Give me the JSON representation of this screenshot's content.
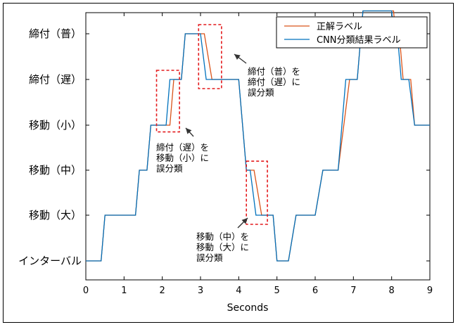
{
  "chart_data": {
    "type": "line",
    "xlabel": "Seconds",
    "xlim": [
      0,
      9
    ],
    "xticks": [
      "0",
      "1",
      "2",
      "3",
      "4",
      "5",
      "6",
      "7",
      "8",
      "9"
    ],
    "yticks": [
      "インターバル",
      "移動（大）",
      "移動（中）",
      "移動（小）",
      "締付（遅）",
      "締付（普）"
    ],
    "ylim": [
      0,
      5
    ],
    "legend_position": "top-right",
    "grid": false,
    "series": [
      {
        "name": "正解ラベル",
        "color": "#d95319",
        "points": [
          [
            0,
            0
          ],
          [
            0.4,
            0
          ],
          [
            0.5,
            1
          ],
          [
            1.3,
            1
          ],
          [
            1.4,
            2
          ],
          [
            1.6,
            2
          ],
          [
            1.7,
            3
          ],
          [
            1.9,
            3
          ],
          [
            2.0,
            3
          ],
          [
            2.2,
            3
          ],
          [
            2.3,
            4
          ],
          [
            2.5,
            4
          ],
          [
            2.6,
            5
          ],
          [
            3.0,
            5
          ],
          [
            3.1,
            5
          ],
          [
            3.3,
            4
          ],
          [
            4.0,
            4
          ],
          [
            4.2,
            2
          ],
          [
            4.4,
            2
          ],
          [
            4.6,
            1
          ],
          [
            4.9,
            1
          ],
          [
            5.0,
            0
          ],
          [
            5.3,
            0
          ],
          [
            5.5,
            1
          ],
          [
            6.0,
            1
          ],
          [
            6.2,
            2
          ],
          [
            6.6,
            2
          ],
          [
            6.9,
            4
          ],
          [
            7.1,
            4
          ],
          [
            7.25,
            5.5
          ],
          [
            8.05,
            5.5
          ],
          [
            8.1,
            5
          ],
          [
            8.2,
            5
          ],
          [
            8.3,
            4
          ],
          [
            8.5,
            4
          ],
          [
            8.6,
            3
          ],
          [
            9.0,
            3
          ]
        ]
      },
      {
        "name": "CNN分類結果ラベル",
        "color": "#0072bd",
        "points": [
          [
            0,
            0
          ],
          [
            0.4,
            0
          ],
          [
            0.5,
            1
          ],
          [
            1.3,
            1
          ],
          [
            1.4,
            2
          ],
          [
            1.6,
            2
          ],
          [
            1.7,
            3
          ],
          [
            1.95,
            3
          ],
          [
            2.0,
            3
          ],
          [
            2.1,
            3
          ],
          [
            2.2,
            4
          ],
          [
            2.5,
            4
          ],
          [
            2.6,
            5
          ],
          [
            2.9,
            5
          ],
          [
            3.0,
            5
          ],
          [
            3.15,
            4
          ],
          [
            4.0,
            4
          ],
          [
            4.2,
            2
          ],
          [
            4.3,
            2
          ],
          [
            4.45,
            1
          ],
          [
            4.9,
            1
          ],
          [
            5.0,
            0
          ],
          [
            5.3,
            0
          ],
          [
            5.5,
            1
          ],
          [
            6.0,
            1
          ],
          [
            6.2,
            2
          ],
          [
            6.6,
            2
          ],
          [
            6.8,
            4
          ],
          [
            7.1,
            4
          ],
          [
            7.25,
            5.5
          ],
          [
            8.0,
            5.5
          ],
          [
            8.05,
            5
          ],
          [
            8.15,
            5
          ],
          [
            8.25,
            4
          ],
          [
            8.45,
            4
          ],
          [
            8.6,
            3
          ],
          [
            9.0,
            3
          ]
        ]
      }
    ],
    "annotations": [
      {
        "lines": [
          "締付（普）を",
          "締付（遅）に",
          "誤分類"
        ],
        "box_x": [
          2.95,
          3.55
        ],
        "box_y": [
          3.8,
          5.2
        ]
      },
      {
        "lines": [
          "締付（遅）を",
          "移動（小）に",
          "誤分類"
        ],
        "box_x": [
          1.85,
          2.45
        ],
        "box_y": [
          2.85,
          4.2
        ]
      },
      {
        "lines": [
          "移動（中）を",
          "移動（大）に",
          "誤分類"
        ],
        "box_x": [
          4.2,
          4.75
        ],
        "box_y": [
          0.8,
          2.2
        ]
      }
    ]
  }
}
